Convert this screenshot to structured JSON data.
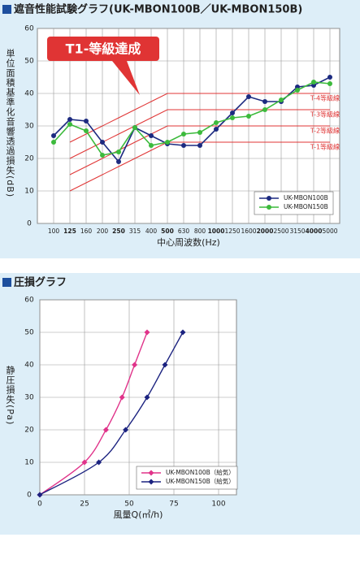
{
  "chart_data": [
    {
      "type": "line",
      "title": "遮音性能試験グラフ(UK-MBON100B／UK-MBON150B)",
      "y_label": "単位面積基準化音響透過損失(dB)",
      "x_label": "中心周波数(Hz)",
      "annotation": "T1-等級達成",
      "categories": [
        "100",
        "125",
        "160",
        "200",
        "250",
        "315",
        "400",
        "500",
        "630",
        "800",
        "1000",
        "1250",
        "1600",
        "2000",
        "2500",
        "3150",
        "4000",
        "5000"
      ],
      "ylim": [
        0,
        60
      ],
      "yticks": [
        0,
        10,
        20,
        30,
        40,
        50,
        60
      ],
      "grid": true,
      "legend": "lower right",
      "series": [
        {
          "name": "UK-MBON100B",
          "color": "#1c2a80",
          "values": [
            27,
            32,
            31.5,
            25,
            19,
            29.5,
            27,
            24.5,
            24,
            24,
            29,
            34,
            39,
            37.5,
            37.5,
            42,
            42.5,
            45
          ]
        },
        {
          "name": "UK-MBON150B",
          "color": "#3cba3c",
          "values": [
            25,
            30.5,
            28.5,
            21,
            22,
            29.5,
            24,
            25,
            27.5,
            28,
            31,
            32.5,
            33,
            35,
            38,
            41,
            43.5,
            43
          ]
        }
      ],
      "reference_lines": [
        {
          "name": "T-4等級線",
          "color": "#e03434",
          "values": [
            null,
            25,
            27.5,
            30,
            32.5,
            35,
            37.5,
            40,
            40,
            40,
            40,
            40,
            40,
            40,
            40,
            40,
            40,
            40
          ]
        },
        {
          "name": "T-3等級線",
          "color": "#e03434",
          "values": [
            null,
            20,
            22.5,
            25,
            27.5,
            30,
            32.5,
            35,
            35,
            35,
            35,
            35,
            35,
            35,
            35,
            35,
            35,
            35
          ]
        },
        {
          "name": "T-2等級線",
          "color": "#e03434",
          "values": [
            null,
            15,
            17.5,
            20,
            22.5,
            25,
            27.5,
            30,
            30,
            30,
            30,
            30,
            30,
            30,
            30,
            30,
            30,
            30
          ]
        },
        {
          "name": "T-1等級線",
          "color": "#e03434",
          "values": [
            null,
            10,
            12.5,
            15,
            17.5,
            20,
            22.5,
            25,
            25,
            25,
            25,
            25,
            25,
            25,
            25,
            25,
            25,
            25
          ]
        }
      ]
    },
    {
      "type": "curve",
      "title": "圧損グラフ",
      "y_label": "静圧損失(Pa)",
      "x_label": "風量Q(㎥/h)",
      "xlim": [
        0,
        110
      ],
      "xticks": [
        0,
        25,
        50,
        75,
        100
      ],
      "ylim": [
        0,
        60
      ],
      "yticks": [
        0,
        10,
        20,
        30,
        40,
        50,
        60
      ],
      "grid": true,
      "legend": "lower right",
      "series": [
        {
          "name": "UK-MBON100B（給気）",
          "color": "#e0338a",
          "x": [
            0,
            25,
            37,
            46,
            53,
            60
          ],
          "values": [
            0,
            10,
            20,
            30,
            40,
            50
          ]
        },
        {
          "name": "UK-MBON150B（給気）",
          "color": "#1c2380",
          "x": [
            0,
            33,
            48,
            60,
            70,
            80
          ],
          "values": [
            0,
            10,
            20,
            30,
            40,
            50
          ]
        }
      ]
    }
  ]
}
